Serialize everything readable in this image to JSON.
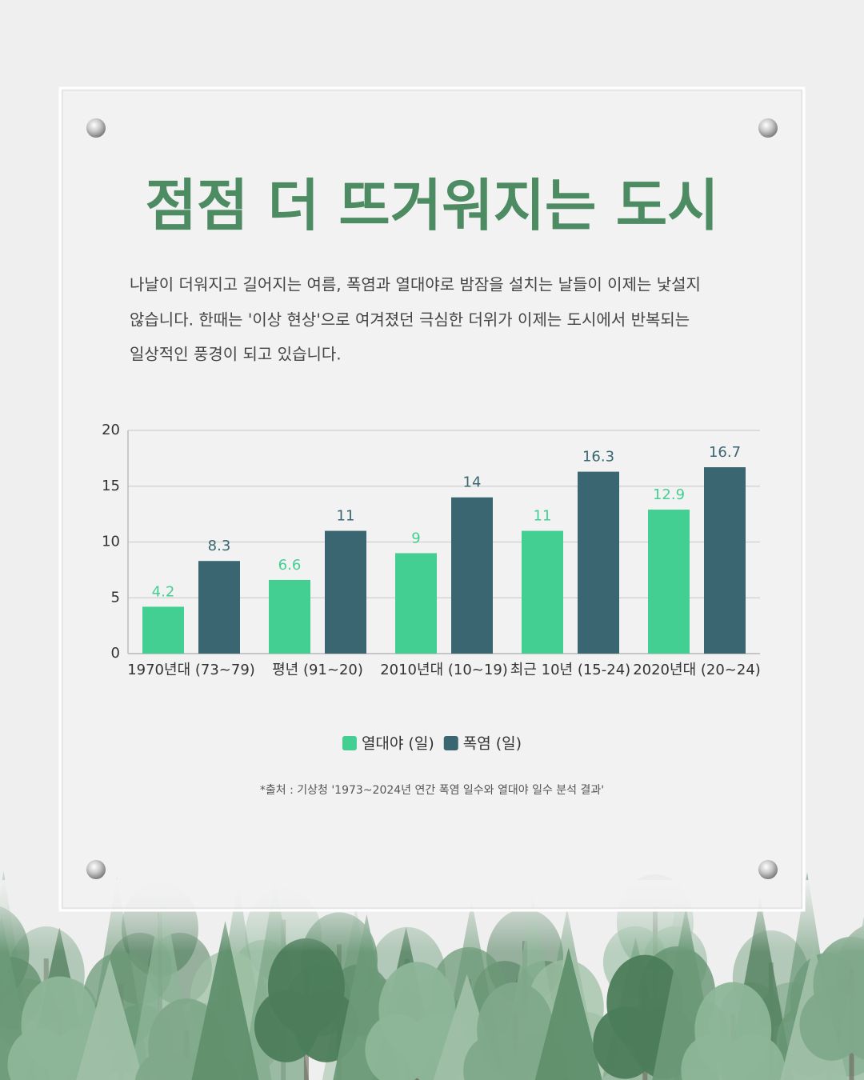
{
  "chart_data": {
    "type": "bar",
    "title": "점점 더 뜨거워지는 도시",
    "description": [
      "나날이 더워지고 길어지는 여름, 폭염과 열대야로 밤잠을 설치는 날들이 이제는 낯설지",
      "않습니다. 한때는 '이상 현상'으로 여겨졌던 극심한 더위가 이제는 도시에서 반복되는",
      "일상적인 풍경이 되고 있습니다."
    ],
    "categories": [
      "1970년대 (73~79)",
      "평년 (91~20)",
      "2010년대 (10~19)",
      "최근 10년 (15-24)",
      "2020년대 (20~24)"
    ],
    "series": [
      {
        "name": "열대야 (일)",
        "color": "#43cf92",
        "values": [
          4.2,
          6.6,
          9,
          11,
          12.9
        ]
      },
      {
        "name": "폭염 (일)",
        "color": "#3a6672",
        "values": [
          8.3,
          11,
          14,
          16.3,
          16.7
        ]
      }
    ],
    "ylim": [
      0,
      20
    ],
    "yticks": [
      0,
      5,
      10,
      15,
      20
    ],
    "grid": true,
    "legend": "bottom",
    "source": "*출처 : 기상청 '1973~2024년 연간 폭염 일수와 열대야 일수 분석 결과'"
  }
}
